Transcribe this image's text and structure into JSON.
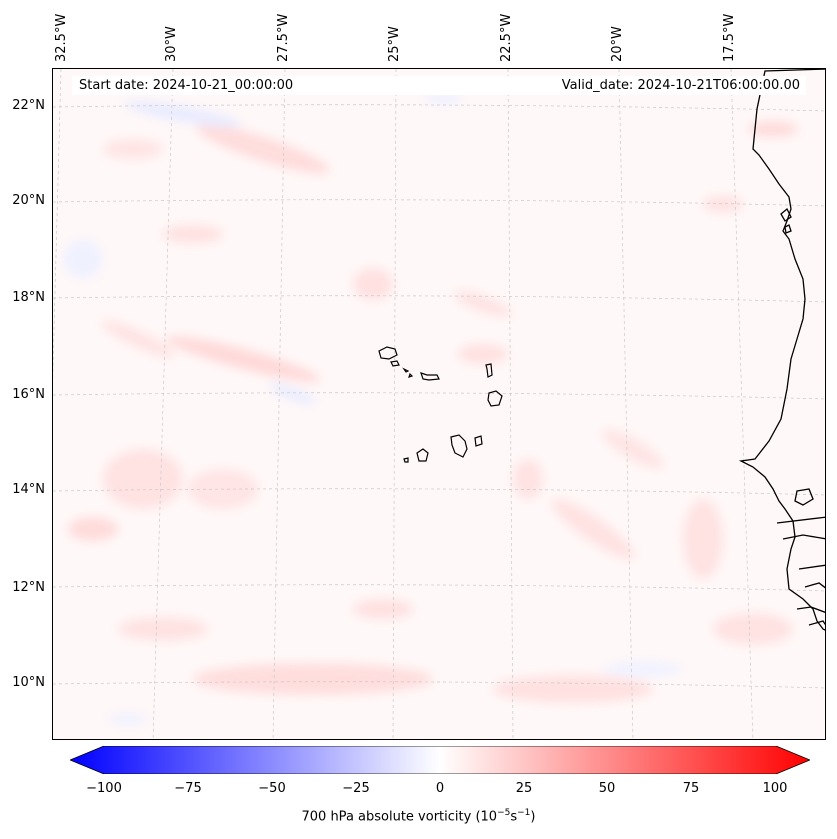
{
  "header": {
    "start_date": "Start date: 2024-10-21_00:00:00",
    "valid_date": "Valid_date: 2024-10-21T06:00:00.00"
  },
  "lon_labels": [
    "32.5°W",
    "30°W",
    "27.5°W",
    "25°W",
    "22.5°W",
    "20°W",
    "17.5°W"
  ],
  "lat_labels": [
    "22°N",
    "20°N",
    "18°N",
    "16°N",
    "14°N",
    "12°N",
    "10°N"
  ],
  "colorbar": {
    "ticks": [
      "−100",
      "−75",
      "−50",
      "−25",
      "0",
      "25",
      "50",
      "75",
      "100"
    ],
    "title": "700 hPa absolute vorticity (10",
    "title_exp1": "−5",
    "title_mid": "s",
    "title_exp2": "−1",
    "title_end": ")",
    "range": [
      -100,
      100
    ],
    "negative_color": "#0000ff",
    "positive_color": "#ff0000"
  },
  "map": {
    "variable": "700 hPa absolute vorticity",
    "grid": true,
    "coastline_color": "#000000"
  }
}
